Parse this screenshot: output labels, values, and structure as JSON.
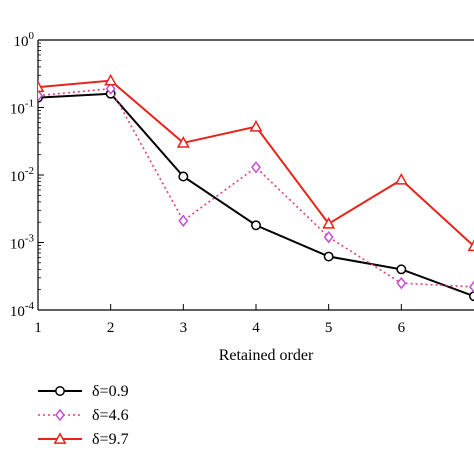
{
  "chart_data": {
    "type": "line",
    "title": "",
    "xlabel": "Retained order",
    "ylabel": "",
    "x": [
      1,
      2,
      3,
      4,
      5,
      6,
      7
    ],
    "xlim": [
      1,
      7
    ],
    "xticks": [
      "1",
      "2",
      "3",
      "4",
      "5",
      "6"
    ],
    "yscale": "log",
    "ylim": [
      0.0001,
      1
    ],
    "yticks": [
      {
        "base": "10",
        "exp": "0"
      },
      {
        "base": "10",
        "exp": "-1"
      },
      {
        "base": "10",
        "exp": "-2"
      },
      {
        "base": "10",
        "exp": "-3"
      },
      {
        "base": "10",
        "exp": "-4"
      }
    ],
    "grid": false,
    "legend_position": "below",
    "series": [
      {
        "name": "δ=0.9",
        "color": "#000000",
        "dash": "solid",
        "marker": "circle",
        "values": [
          0.14,
          0.16,
          0.0095,
          0.0018,
          0.00062,
          0.0004,
          0.00016
        ]
      },
      {
        "name": "δ=4.6",
        "color": "#e0407a",
        "dash": "dotted",
        "marker": "diamond",
        "values": [
          0.15,
          0.19,
          0.0021,
          0.013,
          0.0012,
          0.00025,
          0.00022
        ]
      },
      {
        "name": "δ=9.7",
        "color": "#e8231a",
        "dash": "solid",
        "marker": "triangle",
        "values": [
          0.2,
          0.25,
          0.03,
          0.052,
          0.0019,
          0.0085,
          0.00088
        ]
      }
    ],
    "marker_colors": {
      "diamond": "#c24fd6"
    }
  }
}
